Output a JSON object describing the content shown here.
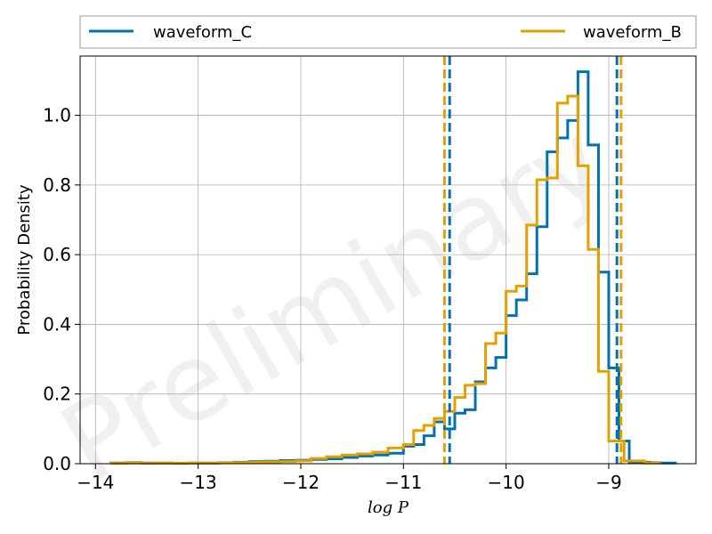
{
  "chart_data": {
    "type": "histogram",
    "xlabel": "log P",
    "ylabel": "Probability Density",
    "xlim": [
      -14.15,
      -8.15
    ],
    "ylim": [
      0,
      1.17
    ],
    "xticks": [
      -14,
      -13,
      -12,
      -11,
      -10,
      -9
    ],
    "xtick_labels": [
      "−14",
      "−13",
      "−12",
      "−11",
      "−10",
      "−9"
    ],
    "yticks": [
      0.0,
      0.2,
      0.4,
      0.6,
      0.8,
      1.0
    ],
    "ytick_labels": [
      "0.0",
      "0.2",
      "0.4",
      "0.6",
      "0.8",
      "1.0"
    ],
    "grid": true,
    "legend_position": "top, above plot",
    "watermark": "Preliminary",
    "series": [
      {
        "name": "waveform_C",
        "color": "#0072b2",
        "bin_edges": [
          -13.85,
          -13.7,
          -13.55,
          -13.4,
          -13.25,
          -13.1,
          -12.95,
          -12.8,
          -12.65,
          -12.5,
          -12.35,
          -12.2,
          -12.05,
          -11.9,
          -11.75,
          -11.6,
          -11.45,
          -11.3,
          -11.15,
          -11.0,
          -10.9,
          -10.8,
          -10.7,
          -10.6,
          -10.5,
          -10.4,
          -10.3,
          -10.2,
          -10.1,
          -10.0,
          -9.9,
          -9.8,
          -9.7,
          -9.6,
          -9.5,
          -9.4,
          -9.3,
          -9.2,
          -9.1,
          -9.0,
          -8.9,
          -8.8,
          -8.7,
          -8.6,
          -8.5,
          -8.35
        ],
        "values": [
          0.002,
          0.003,
          0.002,
          0.002,
          0.001,
          0.002,
          0.002,
          0.003,
          0.004,
          0.006,
          0.007,
          0.009,
          0.01,
          0.012,
          0.014,
          0.018,
          0.022,
          0.025,
          0.03,
          0.05,
          0.055,
          0.08,
          0.12,
          0.1,
          0.145,
          0.155,
          0.235,
          0.275,
          0.305,
          0.425,
          0.47,
          0.545,
          0.68,
          0.895,
          0.935,
          0.985,
          1.125,
          0.915,
          0.55,
          0.275,
          0.065,
          0.005,
          0.004,
          0.003,
          0.002
        ]
      },
      {
        "name": "waveform_B",
        "color": "#e69f00",
        "bin_edges": [
          -13.85,
          -13.7,
          -13.55,
          -13.4,
          -13.25,
          -13.1,
          -12.95,
          -12.8,
          -12.65,
          -12.5,
          -12.35,
          -12.2,
          -12.05,
          -11.9,
          -11.75,
          -11.6,
          -11.45,
          -11.3,
          -11.15,
          -11.0,
          -10.9,
          -10.8,
          -10.7,
          -10.6,
          -10.5,
          -10.4,
          -10.3,
          -10.2,
          -10.1,
          -10.0,
          -9.9,
          -9.8,
          -9.7,
          -9.6,
          -9.5,
          -9.4,
          -9.3,
          -9.2,
          -9.1,
          -9.0,
          -8.95,
          -8.85,
          -8.75,
          -8.65,
          -8.5
        ],
        "values": [
          0.001,
          0.002,
          0.001,
          0.002,
          0.001,
          0.002,
          0.002,
          0.003,
          0.003,
          0.004,
          0.005,
          0.006,
          0.008,
          0.015,
          0.02,
          0.025,
          0.028,
          0.033,
          0.045,
          0.055,
          0.095,
          0.11,
          0.13,
          0.15,
          0.19,
          0.225,
          0.23,
          0.345,
          0.375,
          0.495,
          0.51,
          0.685,
          0.815,
          0.82,
          1.035,
          1.055,
          0.855,
          0.615,
          0.265,
          0.065,
          0.065,
          0.008,
          0.008,
          0.002
        ]
      }
    ],
    "vlines": [
      {
        "series": "waveform_C",
        "x": -10.55,
        "style": "dashed"
      },
      {
        "series": "waveform_B",
        "x": -10.6,
        "style": "dashed"
      },
      {
        "series": "waveform_C",
        "x": -8.92,
        "style": "dashed"
      },
      {
        "series": "waveform_B",
        "x": -8.88,
        "style": "dashed"
      }
    ]
  }
}
